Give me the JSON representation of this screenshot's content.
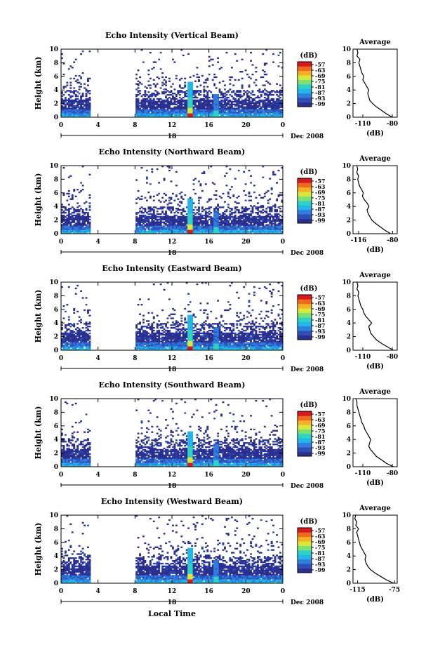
{
  "date_label": "Dec 2008",
  "xlabel": "Local Time",
  "colorbar": {
    "title": "(dB)",
    "ticks": [
      "-57",
      "-63",
      "-69",
      "-75",
      "-81",
      "-87",
      "-93",
      "-99"
    ],
    "colors": [
      "#2b2f8f",
      "#2e4fb8",
      "#2f7fe0",
      "#22b7e8",
      "#2fd3c3",
      "#7ee070",
      "#d6e83a",
      "#f6b026",
      "#f06a1e",
      "#d7191c"
    ]
  },
  "chart_data": [
    {
      "type": "heatmap",
      "title": "Echo Intensity (Vertical Beam)",
      "ylabel": "Height (km)",
      "xlim": [
        0,
        24
      ],
      "ylim": [
        0,
        10
      ],
      "x_ticks": [
        "0",
        "4",
        "8",
        "12",
        "16",
        "20",
        "0"
      ],
      "y_ticks": [
        "0",
        "2",
        "4",
        "6",
        "8",
        "10"
      ],
      "day_label": "18",
      "data_gap_hours": [
        3.2,
        8.0
      ],
      "profile": {
        "title": "Average",
        "xlabel": "(dB)",
        "x_ticks": [
          "-110",
          "-80"
        ],
        "xlim": [
          -120,
          -75
        ],
        "height_km": [
          0,
          0.5,
          1,
          1.5,
          2,
          2.5,
          3,
          3.5,
          4,
          4.5,
          5,
          5.5,
          6,
          6.5,
          7,
          7.5,
          8,
          8.5,
          9,
          9.5,
          10
        ],
        "values_db": [
          -80,
          -86,
          -91,
          -96,
          -100,
          -103,
          -104,
          -105,
          -104,
          -106,
          -108,
          -110,
          -109,
          -111,
          -112,
          -113,
          -114,
          -113,
          -116,
          -115,
          -116
        ]
      }
    },
    {
      "type": "heatmap",
      "title": "Echo Intensity (Northward Beam)",
      "ylabel": "Height (km)",
      "xlim": [
        0,
        24
      ],
      "ylim": [
        0,
        10
      ],
      "x_ticks": [
        "0",
        "4",
        "8",
        "12",
        "16",
        "20",
        "0"
      ],
      "y_ticks": [
        "0",
        "2",
        "4",
        "6",
        "8",
        "10"
      ],
      "day_label": "18",
      "data_gap_hours": [
        3.2,
        8.0
      ],
      "profile": {
        "title": "Average",
        "xlabel": "(dB)",
        "x_ticks": [
          "-116",
          "-80"
        ],
        "xlim": [
          -122,
          -75
        ],
        "height_km": [
          0,
          0.5,
          1,
          1.5,
          2,
          2.5,
          3,
          3.5,
          4,
          4.5,
          5,
          5.5,
          6,
          6.5,
          7,
          7.5,
          8,
          8.5,
          9,
          9.5,
          10
        ],
        "values_db": [
          -82,
          -88,
          -93,
          -98,
          -102,
          -104,
          -106,
          -107,
          -105,
          -107,
          -110,
          -112,
          -111,
          -113,
          -115,
          -116,
          -117,
          -116,
          -118,
          -117,
          -118
        ]
      }
    },
    {
      "type": "heatmap",
      "title": "Echo Intensity (Eastward Beam)",
      "ylabel": "Height (km)",
      "xlim": [
        0,
        24
      ],
      "ylim": [
        0,
        10
      ],
      "x_ticks": [
        "0",
        "4",
        "8",
        "12",
        "16",
        "20",
        "0"
      ],
      "y_ticks": [
        "0",
        "2",
        "4",
        "6",
        "8",
        "10"
      ],
      "day_label": "18",
      "data_gap_hours": [
        3.2,
        8.0
      ],
      "profile": {
        "title": "Average",
        "xlabel": "(dB)",
        "x_ticks": [
          "-110",
          "-80"
        ],
        "xlim": [
          -120,
          -75
        ],
        "height_km": [
          0,
          0.5,
          1,
          1.5,
          2,
          2.5,
          3,
          3.5,
          4,
          4.5,
          5,
          5.5,
          6,
          6.5,
          7,
          7.5,
          8,
          8.5,
          9,
          9.5,
          10
        ],
        "values_db": [
          -79,
          -85,
          -91,
          -96,
          -99,
          -102,
          -103,
          -104,
          -101,
          -104,
          -107,
          -109,
          -110,
          -112,
          -113,
          -114,
          -115,
          -114,
          -116,
          -115,
          -116
        ]
      }
    },
    {
      "type": "heatmap",
      "title": "Echo Intensity (Southward Beam)",
      "ylabel": "Height (km)",
      "xlim": [
        0,
        24
      ],
      "ylim": [
        0,
        10
      ],
      "x_ticks": [
        "0",
        "4",
        "8",
        "12",
        "16",
        "20",
        "0"
      ],
      "y_ticks": [
        "0",
        "2",
        "4",
        "6",
        "8",
        "10"
      ],
      "day_label": "18",
      "data_gap_hours": [
        3.2,
        8.0
      ],
      "profile": {
        "title": "Average",
        "xlabel": "(dB)",
        "x_ticks": [
          "-110",
          "-80"
        ],
        "xlim": [
          -120,
          -75
        ],
        "height_km": [
          0,
          0.5,
          1,
          1.5,
          2,
          2.5,
          3,
          3.5,
          4,
          4.5,
          5,
          5.5,
          6,
          6.5,
          7,
          7.5,
          8,
          8.5,
          9,
          9.5,
          10
        ],
        "values_db": [
          -79,
          -86,
          -91,
          -96,
          -99,
          -102,
          -104,
          -103,
          -102,
          -104,
          -106,
          -108,
          -109,
          -111,
          -112,
          -113,
          -114,
          -115,
          -116,
          -116,
          -117
        ]
      }
    },
    {
      "type": "heatmap",
      "title": "Echo Intensity (Westward Beam)",
      "ylabel": "Height (km)",
      "xlim": [
        0,
        24
      ],
      "ylim": [
        0,
        10
      ],
      "x_ticks": [
        "0",
        "4",
        "8",
        "12",
        "16",
        "20",
        "0"
      ],
      "y_ticks": [
        "0",
        "2",
        "4",
        "6",
        "8",
        "10"
      ],
      "day_label": "18",
      "data_gap_hours": [
        3.2,
        8.0
      ],
      "profile": {
        "title": "Average",
        "xlabel": "(dB)",
        "x_ticks": [
          "-115",
          "-75"
        ],
        "xlim": [
          -120,
          -72
        ],
        "height_km": [
          0,
          0.5,
          1,
          1.5,
          2,
          2.5,
          3,
          3.5,
          4,
          4.5,
          5,
          5.5,
          6,
          6.5,
          7,
          7.5,
          8,
          8.5,
          9,
          9.5,
          10
        ],
        "values_db": [
          -76,
          -84,
          -90,
          -96,
          -101,
          -104,
          -106,
          -107,
          -106,
          -108,
          -110,
          -112,
          -113,
          -114,
          -115,
          -116,
          -114,
          -117,
          -116,
          -118,
          -117
        ]
      }
    }
  ]
}
